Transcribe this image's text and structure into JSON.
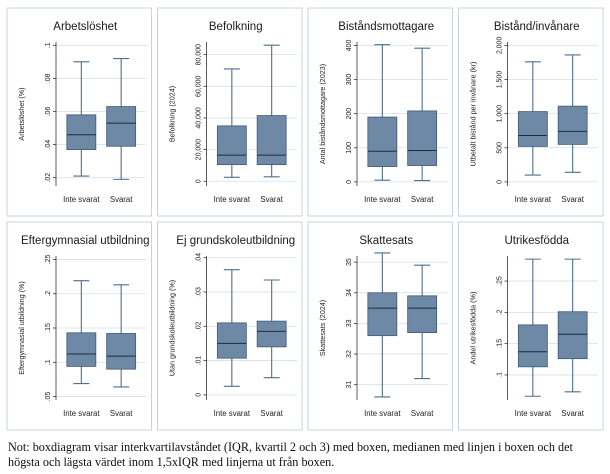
{
  "note": "Not: boxdiagram visar interkvartilavståndet (IQR, kvartil 2 och 3) med boxen, medianen med linjen i boxen och det högsta och lägsta värdet inom 1,5xIQR med linjerna ut från boxen.",
  "style": {
    "box_fill": "#4f6f8f",
    "box_fill_light": "#6d89a5",
    "panel_border": "#c9d3dc",
    "grid_color": "#d6dfe7",
    "text_color": "#1a1a1a"
  },
  "chart_data": [
    {
      "type": "box",
      "title": "Arbetslöshet",
      "ylabel": "Arbetslöshet (%)",
      "yticks": [
        0.02,
        0.04,
        0.06,
        0.08,
        0.1
      ],
      "yticklabels": [
        ".02",
        ".04",
        ".06",
        ".08",
        ".1"
      ],
      "ylim": [
        0.015,
        0.102
      ],
      "categories": [
        "Inte svarat",
        "Svarat"
      ],
      "boxes": [
        {
          "min": 0.021,
          "q1": 0.037,
          "median": 0.046,
          "q3": 0.058,
          "max": 0.09
        },
        {
          "min": 0.019,
          "q1": 0.039,
          "median": 0.053,
          "q3": 0.063,
          "max": 0.092
        }
      ]
    },
    {
      "type": "box",
      "title": "Befolkning",
      "ylabel": "Befolkning (2024)",
      "yticks": [
        0,
        20000,
        40000,
        60000,
        80000
      ],
      "yticklabels": [
        "0",
        "20,000",
        "40,000",
        "60,000",
        "80,000"
      ],
      "ylim": [
        -3000,
        88000
      ],
      "categories": [
        "Inte svarat",
        "Svarat"
      ],
      "boxes": [
        {
          "min": 2500,
          "q1": 10500,
          "median": 16500,
          "q3": 35000,
          "max": 71000
        },
        {
          "min": 2800,
          "q1": 10500,
          "median": 16500,
          "q3": 41500,
          "max": 86000
        }
      ]
    },
    {
      "type": "box",
      "title": "Biståndsmottagare",
      "ylabel": "Antal biståndsmottagare (2023)",
      "yticks": [
        0,
        100,
        200,
        300,
        400
      ],
      "yticklabels": [
        "0",
        "100",
        "200",
        "300",
        "400"
      ],
      "ylim": [
        -12,
        410
      ],
      "categories": [
        "Inte svarat",
        "Svarat"
      ],
      "boxes": [
        {
          "min": 5,
          "q1": 45,
          "median": 90,
          "q3": 190,
          "max": 402
        },
        {
          "min": 4,
          "q1": 48,
          "median": 92,
          "q3": 208,
          "max": 392
        }
      ]
    },
    {
      "type": "box",
      "title": "Bistånd/invånare",
      "ylabel": "Utbetalt bistånd per invånare (kr)",
      "yticks": [
        0,
        500,
        1000,
        1500,
        2000
      ],
      "yticklabels": [
        "0",
        "500",
        "1,000",
        "1,500",
        "2,000"
      ],
      "ylim": [
        -60,
        2050
      ],
      "categories": [
        "Inte svarat",
        "Svarat"
      ],
      "boxes": [
        {
          "min": 100,
          "q1": 520,
          "median": 680,
          "q3": 1030,
          "max": 1760
        },
        {
          "min": 140,
          "q1": 550,
          "median": 740,
          "q3": 1110,
          "max": 1860
        }
      ]
    },
    {
      "type": "box",
      "title": "Eftergymnasial utbildning",
      "ylabel": "Eftergymnasial utbildning (%)",
      "yticks": [
        0.05,
        0.1,
        0.15,
        0.2,
        0.25
      ],
      "yticklabels": [
        ".05",
        ".1",
        ".15",
        ".2",
        ".25"
      ],
      "ylim": [
        0.045,
        0.255
      ],
      "categories": [
        "Inte svarat",
        "Svarat"
      ],
      "boxes": [
        {
          "min": 0.069,
          "q1": 0.094,
          "median": 0.112,
          "q3": 0.143,
          "max": 0.219
        },
        {
          "min": 0.064,
          "q1": 0.09,
          "median": 0.109,
          "q3": 0.142,
          "max": 0.213
        }
      ]
    },
    {
      "type": "box",
      "title": "Ej grundskoleutbildning",
      "ylabel": "Utan grundskoleutbildning (%)",
      "yticks": [
        0,
        0.01,
        0.02,
        0.03,
        0.04
      ],
      "yticklabels": [
        "0",
        ".01",
        ".02",
        ".03",
        ".04"
      ],
      "ylim": [
        -0.0015,
        0.0405
      ],
      "categories": [
        "Inte svarat",
        "Svarat"
      ],
      "boxes": [
        {
          "min": 0.0025,
          "q1": 0.0107,
          "median": 0.015,
          "q3": 0.021,
          "max": 0.0365
        },
        {
          "min": 0.005,
          "q1": 0.014,
          "median": 0.0185,
          "q3": 0.0215,
          "max": 0.0335
        }
      ]
    },
    {
      "type": "box",
      "title": "Skattesats",
      "ylabel": "Skattesats (2024)",
      "yticks": [
        31,
        32,
        33,
        34,
        35
      ],
      "yticklabels": [
        "31",
        "32",
        "33",
        "34",
        "35"
      ],
      "ylim": [
        30.5,
        35.2
      ],
      "categories": [
        "Inte svarat",
        "Svarat"
      ],
      "boxes": [
        {
          "min": 30.6,
          "q1": 32.6,
          "median": 33.5,
          "q3": 34.0,
          "max": 35.3
        },
        {
          "min": 31.2,
          "q1": 32.7,
          "median": 33.5,
          "q3": 33.9,
          "max": 34.9
        }
      ]
    },
    {
      "type": "box",
      "title": "Utrikesfödda",
      "ylabel": "Andel utrikesfödda (%)",
      "yticks": [
        0.1,
        0.15,
        0.2,
        0.25
      ],
      "yticklabels": [
        ".1",
        ".15",
        ".2",
        ".25"
      ],
      "ylim": [
        0.06,
        0.29
      ],
      "categories": [
        "Inte svarat",
        "Svarat"
      ],
      "boxes": [
        {
          "min": 0.066,
          "q1": 0.113,
          "median": 0.137,
          "q3": 0.18,
          "max": 0.285
        },
        {
          "min": 0.073,
          "q1": 0.126,
          "median": 0.165,
          "q3": 0.201,
          "max": 0.285
        }
      ]
    }
  ]
}
